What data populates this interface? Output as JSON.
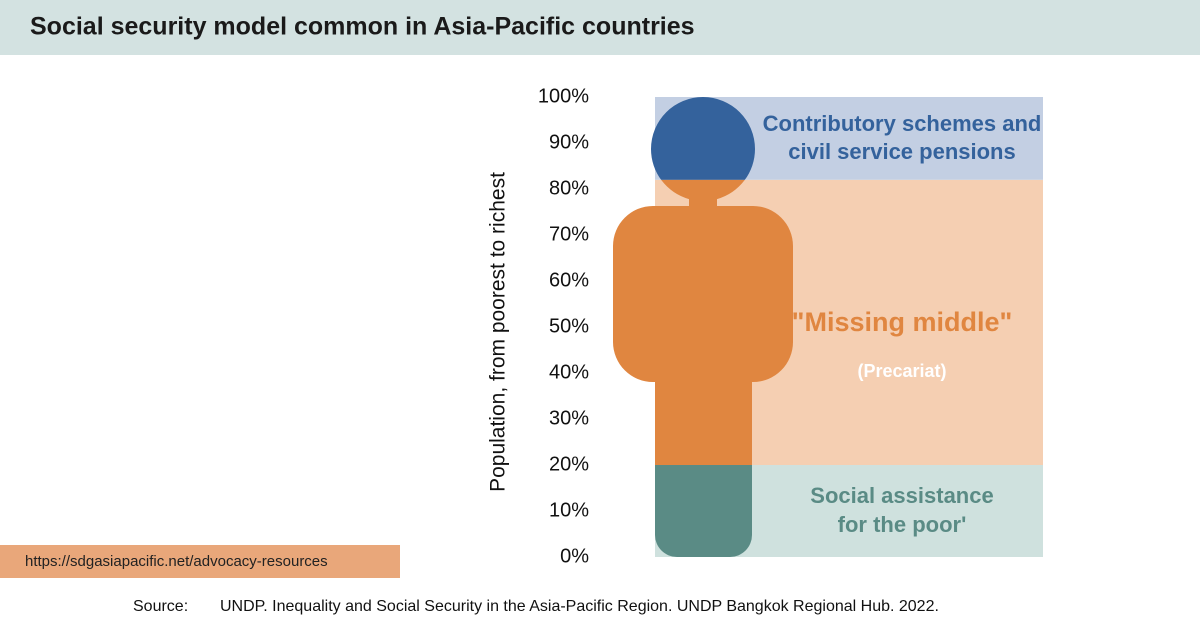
{
  "chart_data": {
    "type": "stacked_band",
    "title": "Social security model common in Asia-Pacific countries",
    "y_label": "Population, from poorest to richest",
    "ylim": [
      0,
      100
    ],
    "yticks": [
      {
        "value": 0,
        "label": "0%"
      },
      {
        "value": 10,
        "label": "10%"
      },
      {
        "value": 20,
        "label": "20%"
      },
      {
        "value": 30,
        "label": "30%"
      },
      {
        "value": 40,
        "label": "40%"
      },
      {
        "value": 50,
        "label": "50%"
      },
      {
        "value": 60,
        "label": "60%"
      },
      {
        "value": 70,
        "label": "70%"
      },
      {
        "value": 80,
        "label": "80%"
      },
      {
        "value": 90,
        "label": "90%"
      },
      {
        "value": 100,
        "label": "100%"
      }
    ],
    "series": [
      {
        "name": "Social assistance for the poor'",
        "color": "#5a8b85",
        "light_color": "#cfe1de",
        "values": [
          20
        ]
      },
      {
        "name": "\"Missing middle\"",
        "note": "(Precariat)",
        "color": "#e08640",
        "light_color": "#f5cfb2",
        "values": [
          62
        ]
      },
      {
        "name": "Contributory schemes and civil service pensions",
        "color": "#34629c",
        "light_color": "#c3cfe3",
        "values": [
          18
        ]
      }
    ],
    "url": "https://sdgasiapacific.net/advocacy-resources",
    "source_label": "Source:",
    "source": "UNDP. Inequality and Social Security in the Asia-Pacific Region. UNDP Bangkok Regional Hub. 2022."
  }
}
